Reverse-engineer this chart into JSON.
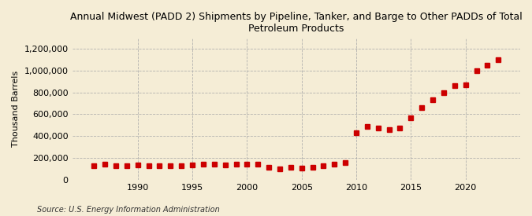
{
  "title": "Annual Midwest (PADD 2) Shipments by Pipeline, Tanker, and Barge to Other PADDs of Total\nPetroleum Products",
  "ylabel": "Thousand Barrels",
  "source": "Source: U.S. Energy Information Administration",
  "background_color": "#f5edd6",
  "marker_color": "#cc0000",
  "grid_color": "#aaaaaa",
  "years": [
    1986,
    1987,
    1988,
    1989,
    1990,
    1991,
    1992,
    1993,
    1994,
    1995,
    1996,
    1997,
    1998,
    1999,
    2000,
    2001,
    2002,
    2003,
    2004,
    2005,
    2006,
    2007,
    2008,
    2009,
    2010,
    2011,
    2012,
    2013,
    2014,
    2015,
    2016,
    2017,
    2018,
    2019,
    2020,
    2021,
    2022,
    2023
  ],
  "values": [
    130000,
    140000,
    125000,
    130000,
    135000,
    130000,
    125000,
    130000,
    130000,
    135000,
    140000,
    140000,
    135000,
    140000,
    145000,
    145000,
    115000,
    100000,
    110000,
    105000,
    115000,
    130000,
    140000,
    155000,
    430000,
    490000,
    470000,
    460000,
    475000,
    565000,
    660000,
    730000,
    800000,
    860000,
    870000,
    1000000,
    1050000,
    1100000
  ],
  "ylim": [
    0,
    1300000
  ],
  "yticks": [
    0,
    200000,
    400000,
    600000,
    800000,
    1000000,
    1200000
  ],
  "xlim": [
    1984,
    2025
  ],
  "xticks": [
    1990,
    1995,
    2000,
    2005,
    2010,
    2015,
    2020
  ]
}
